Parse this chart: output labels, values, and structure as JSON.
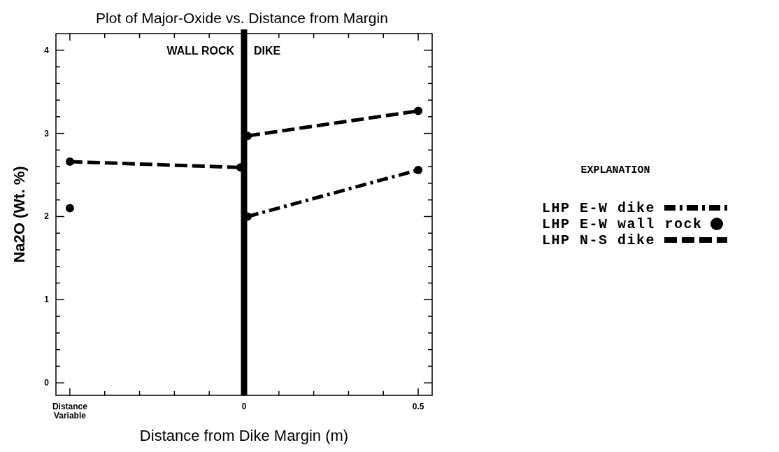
{
  "chart_data": {
    "type": "line",
    "title": "Plot of Major-Oxide vs. Distance from Margin",
    "xlabel": "Distance from Dike Margin (m)",
    "ylabel": "Na2O (Wt. %)",
    "legend_title": "EXPLANATION",
    "legend": "right",
    "grid": false,
    "xlim": [
      -0.54,
      0.54
    ],
    "ylim": [
      -0.15,
      4.2
    ],
    "xticks": [
      {
        "value": -0.5,
        "label": "Distance Variable"
      },
      {
        "value": -0.4,
        "label": null
      },
      {
        "value": -0.3,
        "label": null
      },
      {
        "value": -0.2,
        "label": null
      },
      {
        "value": -0.1,
        "label": null
      },
      0,
      {
        "value": 0.1,
        "label": null
      },
      {
        "value": 0.2,
        "label": null
      },
      {
        "value": 0.3,
        "label": null
      },
      {
        "value": 0.4,
        "label": null
      },
      0.5
    ],
    "yticks": [
      0,
      {
        "value": 0.2,
        "label": null
      },
      {
        "value": 0.4,
        "label": null
      },
      {
        "value": 0.6,
        "label": null
      },
      {
        "value": 0.8,
        "label": null
      },
      1,
      {
        "value": 1.2,
        "label": null
      },
      {
        "value": 1.4,
        "label": null
      },
      {
        "value": 1.6,
        "label": null
      },
      {
        "value": 1.8,
        "label": null
      },
      2,
      {
        "value": 2.2,
        "label": null
      },
      {
        "value": 2.4,
        "label": null
      },
      {
        "value": 2.6,
        "label": null
      },
      {
        "value": 2.8,
        "label": null
      },
      3,
      {
        "value": 3.2,
        "label": null
      },
      {
        "value": 3.4,
        "label": null
      },
      {
        "value": 3.6,
        "label": null
      },
      {
        "value": 3.8,
        "label": null
      },
      4
    ],
    "ref_lines": [
      {
        "axis": "x",
        "value": 0,
        "color": "#000000"
      }
    ],
    "annotations": [
      "WALL ROCK",
      "DIKE"
    ],
    "series": [
      {
        "name": "LHP E-W dike",
        "line_style": "dashdot",
        "marker": "circle",
        "color": "#000000",
        "x": [
          0.01,
          0.5
        ],
        "values": [
          2.0,
          2.56
        ]
      },
      {
        "name": "LHP E-W wall rock",
        "type": "scatter",
        "marker": "circle",
        "color": "#000000",
        "x": [
          -0.5
        ],
        "values": [
          2.1
        ]
      },
      {
        "name": "LHP N-S dike",
        "line_style": "dashed",
        "marker": "circle",
        "color": "#000000",
        "x": [
          -0.5,
          -0.01,
          0,
          0.01,
          0.5
        ],
        "values": [
          2.66,
          2.59,
          null,
          2.97,
          3.27
        ]
      }
    ]
  }
}
